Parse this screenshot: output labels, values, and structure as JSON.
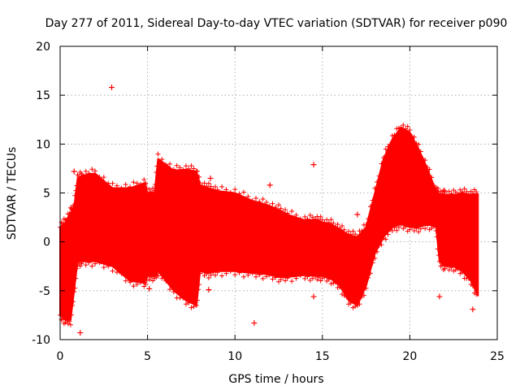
{
  "chart_data": {
    "type": "scatter",
    "title": "Day 277 of 2011, Sidereal Day-to-day VTEC variation (SDTVAR) for receiver p090",
    "xlabel": "GPS time / hours",
    "ylabel": "SDTVAR / TECUs",
    "xlim": [
      0,
      25
    ],
    "ylim": [
      -10,
      20
    ],
    "xticks": [
      0,
      5,
      10,
      15,
      20,
      25
    ],
    "yticks": [
      -10,
      -5,
      0,
      5,
      10,
      15,
      20
    ],
    "grid": true,
    "marker": "+",
    "color": "#ff0000",
    "series": [
      {
        "name": "SDTVAR",
        "envelope": {
          "x": [
            0.0,
            0.3,
            0.6,
            0.8,
            1.0,
            1.3,
            2.0,
            3.0,
            4.0,
            4.8,
            5.0,
            5.4,
            5.6,
            6.5,
            7.2,
            7.8,
            8.0,
            8.5,
            9.0,
            10.0,
            11.0,
            11.8,
            12.5,
            13.0,
            14.0,
            14.6,
            15.0,
            15.5,
            16.0,
            16.5,
            17.0,
            17.5,
            18.0,
            18.5,
            19.0,
            19.5,
            20.0,
            20.5,
            21.0,
            21.5,
            21.7,
            22.0,
            22.5,
            23.0,
            23.5,
            23.9
          ],
          "upper": [
            1.5,
            2.0,
            3.0,
            3.5,
            6.5,
            6.8,
            7.0,
            5.5,
            5.5,
            6.0,
            5.0,
            5.0,
            8.5,
            7.3,
            7.4,
            7.2,
            5.8,
            5.5,
            5.2,
            5.0,
            4.2,
            3.8,
            3.3,
            2.8,
            2.2,
            2.3,
            2.0,
            1.8,
            1.3,
            0.7,
            0.5,
            1.5,
            5.0,
            8.5,
            10.5,
            11.7,
            11.2,
            9.5,
            7.5,
            5.2,
            4.8,
            4.8,
            4.8,
            5.0,
            4.8,
            4.9
          ],
          "lower": [
            -7.5,
            -8.0,
            -8.0,
            -5.0,
            -2.0,
            -2.0,
            -2.0,
            -2.5,
            -4.0,
            -4.2,
            -3.5,
            -3.5,
            -3.0,
            -5.0,
            -6.0,
            -6.5,
            -3.0,
            -3.2,
            -3.0,
            -3.0,
            -3.2,
            -3.3,
            -3.6,
            -3.6,
            -3.4,
            -3.5,
            -3.5,
            -3.8,
            -4.5,
            -6.0,
            -6.5,
            -4.5,
            -1.2,
            0.5,
            1.5,
            1.8,
            1.5,
            1.5,
            1.8,
            1.5,
            -2.0,
            -2.5,
            -2.5,
            -3.0,
            -4.0,
            -5.5
          ]
        },
        "outliers": [
          {
            "x": 2.95,
            "y": 15.8
          },
          {
            "x": 14.5,
            "y": 7.9
          },
          {
            "x": 8.6,
            "y": 6.5
          },
          {
            "x": 12.0,
            "y": 5.8
          },
          {
            "x": 11.1,
            "y": -8.3
          },
          {
            "x": 1.15,
            "y": -9.3
          },
          {
            "x": 0.8,
            "y": 7.2
          },
          {
            "x": 22.0,
            "y": 5.2
          },
          {
            "x": 17.0,
            "y": 2.8
          },
          {
            "x": 14.5,
            "y": -5.6
          },
          {
            "x": 23.6,
            "y": -6.9
          },
          {
            "x": 21.7,
            "y": -5.6
          },
          {
            "x": 5.1,
            "y": -4.8
          },
          {
            "x": 8.5,
            "y": -4.9
          }
        ]
      }
    ]
  }
}
